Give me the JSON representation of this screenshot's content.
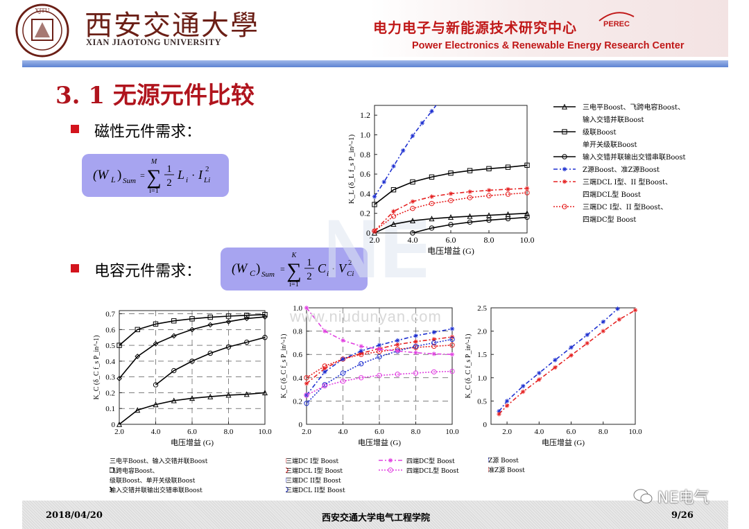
{
  "header": {
    "university_cn": "西安交通大學",
    "university_en": "XIAN JIAOTONG UNIVERSITY",
    "center_cn": "电力电子与新能源技术研究中心",
    "center_logo": "PEREC",
    "center_en": "Power Electronics & Renewable Energy Research Center"
  },
  "slide": {
    "title": "3. 1 无源元件比较",
    "bullet1": "磁性元件需求：",
    "bullet2": "电容元件需求："
  },
  "formulas": {
    "inductor": {
      "lhs": "(W",
      "lhs_sub": "L",
      "lhs_close": ")",
      "lhs_sum_sub": "Sum",
      "upper": "M",
      "lower": "i=1",
      "frac_num": "1",
      "frac_den": "2",
      "term1": "L",
      "term1_sub": "i",
      "dot": "·",
      "term2": "I",
      "term2_sub": "Li",
      "term2_sup": "2"
    },
    "capacitor": {
      "lhs": "(W",
      "lhs_sub": "C",
      "lhs_close": ")",
      "lhs_sum_sub": "Sum",
      "upper": "K",
      "lower": "i=1",
      "frac_num": "1",
      "frac_den": "2",
      "term1": "C",
      "term1_sub": "i",
      "dot": "·",
      "term2": "V",
      "term2_sub": "Ci",
      "term2_sup": "2"
    }
  },
  "colors": {
    "red_title": "#b0141d",
    "blue_dash": "#1d2fd0",
    "red_dot": "#e52020",
    "magenta": "#e040e0",
    "black": "#000000"
  },
  "chart_data": [
    {
      "id": "inductor",
      "type": "line",
      "xlabel": "电压增益 (G)",
      "ylabel": "K_L (δ_L f_s P_in^-1)",
      "xticks": [
        "2.0",
        "4.0",
        "6.0",
        "8.0",
        "10.0"
      ],
      "yticks": [
        "0",
        "0.2",
        "0.4",
        "0.6",
        "0.8",
        "1.0",
        "1.2"
      ],
      "xlim": [
        2,
        10
      ],
      "ylim": [
        0,
        1.3
      ],
      "series": [
        {
          "name": "三电平Boost、飞跨电容Boost、输入交错并联Boost",
          "color": "#000000",
          "dash": "",
          "marker": "triangle",
          "x": [
            2,
            3,
            4,
            5,
            6,
            7,
            8,
            9,
            10
          ],
          "y": [
            0.0,
            0.09,
            0.125,
            0.145,
            0.16,
            0.17,
            0.18,
            0.19,
            0.2
          ]
        },
        {
          "name": "级联Boost 单开关级联Boost",
          "color": "#000000",
          "dash": "",
          "marker": "square",
          "x": [
            2,
            3,
            4,
            5,
            6,
            7,
            8,
            9,
            10
          ],
          "y": [
            0.29,
            0.44,
            0.52,
            0.57,
            0.61,
            0.635,
            0.655,
            0.67,
            0.69
          ]
        },
        {
          "name": "输入交错并联输出交错串联Boost",
          "color": "#000000",
          "dash": "",
          "marker": "circle",
          "x": [
            4,
            5,
            6,
            7,
            8,
            9,
            10
          ],
          "y": [
            0.0,
            0.05,
            0.085,
            0.11,
            0.13,
            0.145,
            0.16
          ]
        },
        {
          "name": "Z源Boost、准Z源Boost",
          "color": "#1d2fd0",
          "dash": "6 3 2 3",
          "marker": "star",
          "x": [
            2,
            2.5,
            3,
            3.5,
            4,
            4.5,
            5,
            5.3
          ],
          "y": [
            0.37,
            0.52,
            0.68,
            0.84,
            0.99,
            1.12,
            1.24,
            1.32
          ]
        },
        {
          "name": "三端DCL I型、II 型Boost、四端DCL型 Boost",
          "color": "#e52020",
          "dash": "3 3",
          "marker": "star",
          "x": [
            2,
            3,
            4,
            5,
            6,
            7,
            8,
            9,
            10
          ],
          "y": [
            0.02,
            0.22,
            0.32,
            0.37,
            0.4,
            0.42,
            0.435,
            0.445,
            0.455
          ]
        },
        {
          "name": "三端DC I型、II 型Boost、四端DC型 Boost",
          "color": "#e52020",
          "dash": "2 2",
          "marker": "circle",
          "x": [
            2,
            3,
            4,
            5,
            6,
            7,
            8,
            9,
            10
          ],
          "y": [
            0.02,
            0.17,
            0.25,
            0.3,
            0.33,
            0.36,
            0.38,
            0.395,
            0.41
          ]
        }
      ]
    },
    {
      "id": "capacitor-left",
      "type": "line",
      "xlabel": "电压增益 (G)",
      "ylabel": "K_C (δ_C f_s P_in^-1)",
      "xticks": [
        "2.0",
        "4.0",
        "6.0",
        "8.0",
        "10.0"
      ],
      "yticks": [
        "0",
        "0.1",
        "0.2",
        "0.3",
        "0.4",
        "0.5",
        "0.6",
        "0.7"
      ],
      "xlim": [
        2,
        10
      ],
      "ylim": [
        0,
        0.72
      ],
      "series": [
        {
          "name": "三电平Boost、输入交错并联Boost",
          "color": "#000000",
          "marker": "triangle",
          "x": [
            2,
            3,
            4,
            5,
            6,
            7,
            8,
            9,
            10
          ],
          "y": [
            0.0,
            0.09,
            0.125,
            0.15,
            0.165,
            0.175,
            0.185,
            0.19,
            0.2
          ]
        },
        {
          "name": "飞跨电容Boost、",
          "color": "#000000",
          "marker": "square",
          "x": [
            2,
            3,
            4,
            5,
            6,
            7,
            8,
            9,
            10
          ],
          "y": [
            0.5,
            0.6,
            0.635,
            0.655,
            0.668,
            0.678,
            0.685,
            0.69,
            0.695
          ]
        },
        {
          "name": "级联Boost、单开关级联Boost",
          "color": "#000000",
          "marker": "diamond",
          "x": [
            2,
            3,
            4,
            5,
            6,
            7,
            8,
            9,
            10
          ],
          "y": [
            0.29,
            0.43,
            0.51,
            0.56,
            0.6,
            0.63,
            0.65,
            0.67,
            0.68
          ]
        },
        {
          "name": "输入交错并联输出交错串联Boost",
          "color": "#000000",
          "marker": "circle",
          "x": [
            4,
            5,
            6,
            7,
            8,
            9,
            10
          ],
          "y": [
            0.25,
            0.34,
            0.4,
            0.45,
            0.49,
            0.52,
            0.55
          ]
        }
      ]
    },
    {
      "id": "capacitor-middle",
      "type": "line",
      "xlabel": "电压增益 (G)",
      "ylabel": "K_C (δ_C f_s P_in^-1)",
      "xticks": [
        "2.0",
        "4.0",
        "6.0",
        "8.0",
        "10.0"
      ],
      "yticks": [
        "0",
        "0.2",
        "0.4",
        "0.6",
        "0.8",
        "1.0"
      ],
      "xlim": [
        2,
        10
      ],
      "ylim": [
        0,
        1.0
      ],
      "series": [
        {
          "name": "三端DC I型 Boost",
          "color": "#e52020",
          "marker": "star",
          "x": [
            2,
            3,
            4,
            5,
            6,
            7,
            8,
            9,
            10
          ],
          "y": [
            0.35,
            0.48,
            0.56,
            0.61,
            0.65,
            0.685,
            0.71,
            0.73,
            0.75
          ]
        },
        {
          "name": "三端DCL I型 Boost",
          "color": "#e52020",
          "marker": "circle",
          "x": [
            2,
            3,
            4,
            5,
            6,
            7,
            8,
            9,
            10
          ],
          "y": [
            0.4,
            0.5,
            0.56,
            0.6,
            0.625,
            0.645,
            0.66,
            0.67,
            0.68
          ]
        },
        {
          "name": "三端DC II型 Boost",
          "color": "#1d2fd0",
          "marker": "star",
          "x": [
            2,
            3,
            4,
            5,
            6,
            7,
            8,
            9,
            10
          ],
          "y": [
            0.25,
            0.45,
            0.56,
            0.63,
            0.68,
            0.72,
            0.76,
            0.79,
            0.82
          ]
        },
        {
          "name": "三端DCL II型 Boost",
          "color": "#1d2fd0",
          "marker": "circle",
          "x": [
            2,
            3,
            4,
            5,
            6,
            7,
            8,
            9,
            10
          ],
          "y": [
            0.18,
            0.34,
            0.44,
            0.52,
            0.58,
            0.63,
            0.67,
            0.7,
            0.73
          ]
        },
        {
          "name": "四端DC型 Boost",
          "color": "#e040e0",
          "marker": "star",
          "x": [
            2,
            3,
            4,
            5,
            6,
            7,
            8,
            9,
            10
          ],
          "y": [
            1.0,
            0.8,
            0.72,
            0.67,
            0.645,
            0.63,
            0.615,
            0.605,
            0.6
          ]
        },
        {
          "name": "四端DCL型 Boost",
          "color": "#e040e0",
          "marker": "circle",
          "x": [
            2,
            3,
            4,
            5,
            6,
            7,
            8,
            9,
            10
          ],
          "y": [
            0.25,
            0.33,
            0.37,
            0.4,
            0.42,
            0.43,
            0.44,
            0.45,
            0.455
          ]
        }
      ]
    },
    {
      "id": "capacitor-right",
      "type": "line",
      "xlabel": "电压增益 (G)",
      "ylabel": "K_C (δ_C f_s P_in^-1)",
      "xticks": [
        "2.0",
        "4.0",
        "6.0",
        "8.0",
        "10.0"
      ],
      "yticks": [
        "0",
        "0.5",
        "1.0",
        "1.5",
        "2.0",
        "2.5"
      ],
      "xlim": [
        1,
        10
      ],
      "ylim": [
        0,
        2.5
      ],
      "series": [
        {
          "name": "Z源 Boost",
          "color": "#1d2fd0",
          "marker": "star",
          "x": [
            1.5,
            2,
            3,
            4,
            5,
            6,
            7,
            8,
            8.9
          ],
          "y": [
            0.28,
            0.5,
            0.82,
            1.1,
            1.38,
            1.65,
            1.92,
            2.2,
            2.48
          ]
        },
        {
          "name": "准Z源 Boost",
          "color": "#e52020",
          "marker": "star",
          "x": [
            1.5,
            2,
            3,
            4,
            5,
            6,
            7,
            8,
            9,
            10
          ],
          "y": [
            0.22,
            0.4,
            0.7,
            0.96,
            1.22,
            1.48,
            1.74,
            2.0,
            2.25,
            2.45
          ]
        }
      ]
    }
  ],
  "watermark": {
    "url": "www.niudunyan.com",
    "ne": "NE"
  },
  "footer": {
    "date": "2018/04/20",
    "school": "西安交通大学电气工程学院",
    "page": "9/26",
    "wechat": "NE电气"
  }
}
